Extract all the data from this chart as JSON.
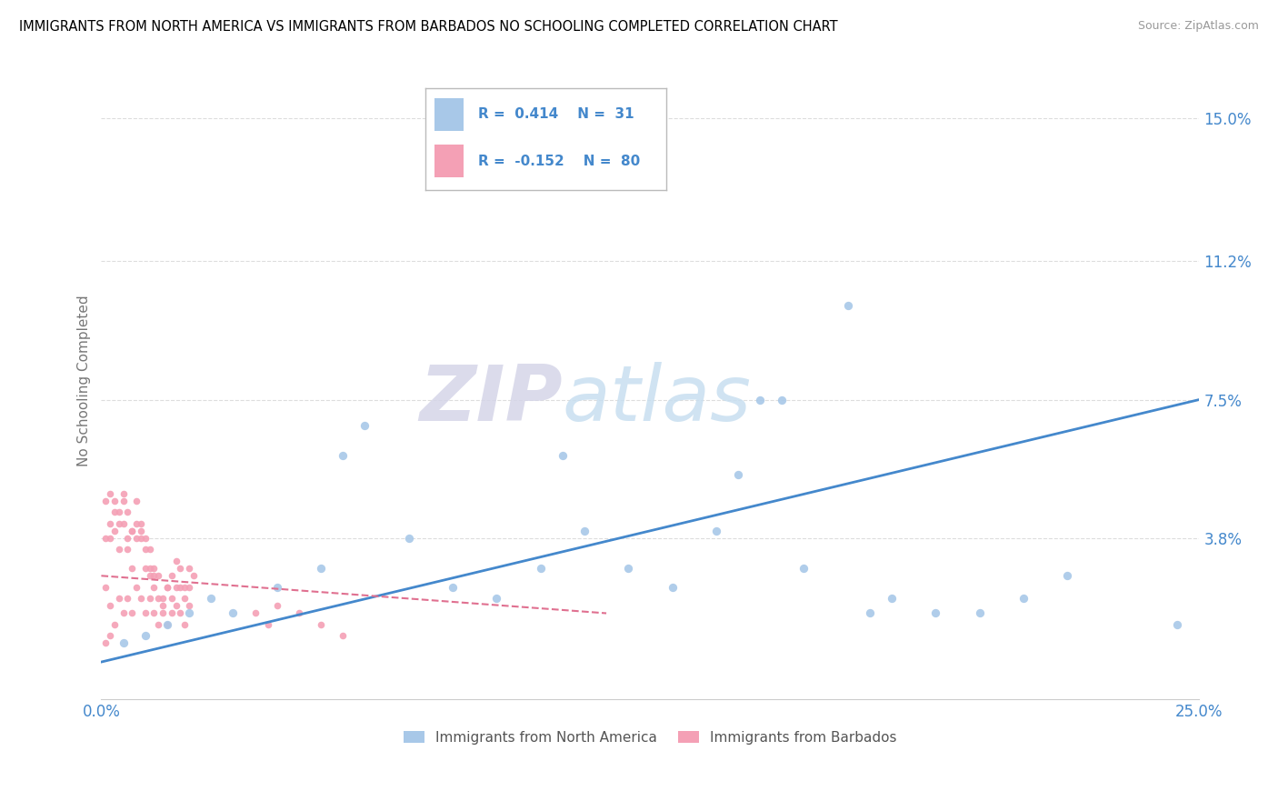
{
  "title": "IMMIGRANTS FROM NORTH AMERICA VS IMMIGRANTS FROM BARBADOS NO SCHOOLING COMPLETED CORRELATION CHART",
  "source": "Source: ZipAtlas.com",
  "ylabel": "No Schooling Completed",
  "xlim": [
    0.0,
    0.25
  ],
  "ylim": [
    -0.005,
    0.165
  ],
  "ytick_positions": [
    0.0,
    0.038,
    0.075,
    0.112,
    0.15
  ],
  "ytick_labels": [
    "",
    "3.8%",
    "7.5%",
    "11.2%",
    "15.0%"
  ],
  "r_blue": 0.414,
  "n_blue": 31,
  "r_pink": -0.152,
  "n_pink": 80,
  "blue_color": "#a8c8e8",
  "pink_color": "#f4a0b5",
  "trendline_blue_color": "#4488cc",
  "trendline_pink_color": "#e07090",
  "watermark_zip": "ZIP",
  "watermark_atlas": "atlas",
  "legend_label_blue": "Immigrants from North America",
  "legend_label_pink": "Immigrants from Barbados",
  "blue_scatter_x": [
    0.005,
    0.01,
    0.015,
    0.02,
    0.025,
    0.03,
    0.04,
    0.05,
    0.055,
    0.06,
    0.07,
    0.08,
    0.09,
    0.1,
    0.105,
    0.11,
    0.12,
    0.13,
    0.14,
    0.145,
    0.15,
    0.155,
    0.16,
    0.17,
    0.175,
    0.18,
    0.19,
    0.2,
    0.21,
    0.22,
    0.245
  ],
  "blue_scatter_y": [
    0.01,
    0.012,
    0.015,
    0.018,
    0.022,
    0.018,
    0.025,
    0.03,
    0.06,
    0.068,
    0.038,
    0.025,
    0.022,
    0.03,
    0.06,
    0.04,
    0.03,
    0.025,
    0.04,
    0.055,
    0.075,
    0.075,
    0.03,
    0.1,
    0.018,
    0.022,
    0.018,
    0.018,
    0.022,
    0.028,
    0.015
  ],
  "pink_scatter_x": [
    0.001,
    0.002,
    0.002,
    0.003,
    0.003,
    0.004,
    0.004,
    0.005,
    0.005,
    0.006,
    0.006,
    0.007,
    0.007,
    0.008,
    0.008,
    0.009,
    0.009,
    0.01,
    0.01,
    0.011,
    0.011,
    0.012,
    0.012,
    0.013,
    0.013,
    0.014,
    0.014,
    0.015,
    0.015,
    0.016,
    0.016,
    0.017,
    0.017,
    0.018,
    0.018,
    0.019,
    0.019,
    0.02,
    0.02,
    0.021,
    0.001,
    0.002,
    0.003,
    0.004,
    0.005,
    0.006,
    0.007,
    0.008,
    0.009,
    0.01,
    0.011,
    0.012,
    0.013,
    0.014,
    0.015,
    0.016,
    0.017,
    0.018,
    0.019,
    0.02,
    0.001,
    0.002,
    0.003,
    0.004,
    0.005,
    0.006,
    0.007,
    0.008,
    0.009,
    0.01,
    0.011,
    0.012,
    0.001,
    0.002,
    0.035,
    0.038,
    0.04,
    0.045,
    0.05,
    0.055
  ],
  "pink_scatter_y": [
    0.025,
    0.038,
    0.02,
    0.04,
    0.015,
    0.035,
    0.022,
    0.042,
    0.018,
    0.035,
    0.022,
    0.03,
    0.018,
    0.038,
    0.025,
    0.04,
    0.022,
    0.03,
    0.018,
    0.028,
    0.022,
    0.025,
    0.018,
    0.022,
    0.015,
    0.02,
    0.018,
    0.025,
    0.015,
    0.022,
    0.018,
    0.025,
    0.02,
    0.025,
    0.018,
    0.022,
    0.015,
    0.025,
    0.02,
    0.028,
    0.048,
    0.05,
    0.045,
    0.042,
    0.048,
    0.038,
    0.04,
    0.048,
    0.042,
    0.038,
    0.035,
    0.03,
    0.028,
    0.022,
    0.025,
    0.028,
    0.032,
    0.03,
    0.025,
    0.03,
    0.038,
    0.042,
    0.048,
    0.045,
    0.05,
    0.045,
    0.04,
    0.042,
    0.038,
    0.035,
    0.03,
    0.028,
    0.01,
    0.012,
    0.018,
    0.015,
    0.02,
    0.018,
    0.015,
    0.012
  ],
  "blue_trendline_x": [
    0.0,
    0.25
  ],
  "blue_trendline_y": [
    0.005,
    0.075
  ],
  "pink_trendline_x": [
    0.0,
    0.115
  ],
  "pink_trendline_y": [
    0.028,
    0.018
  ]
}
